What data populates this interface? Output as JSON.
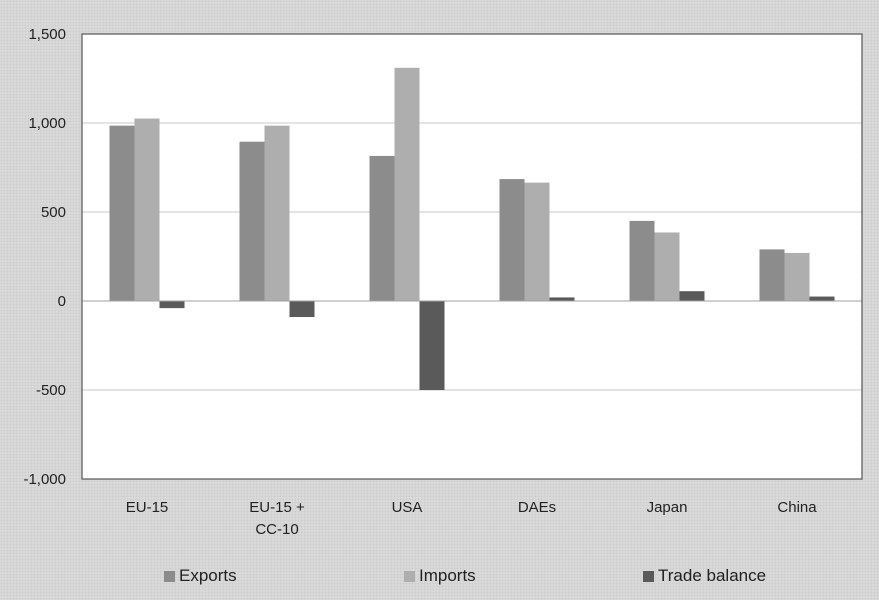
{
  "chart_data": {
    "type": "bar",
    "title": "",
    "xlabel": "",
    "ylabel": "",
    "categories": [
      [
        "EU-15"
      ],
      [
        "EU-15 +",
        "CC-10"
      ],
      [
        "USA"
      ],
      [
        "DAEs"
      ],
      [
        "Japan"
      ],
      [
        "China"
      ]
    ],
    "series": [
      {
        "name": "Exports",
        "color": "#8c8c8c",
        "values": [
          985,
          895,
          815,
          685,
          450,
          290
        ]
      },
      {
        "name": "Imports",
        "color": "#aeaeae",
        "values": [
          1025,
          985,
          1310,
          665,
          385,
          270
        ]
      },
      {
        "name": "Trade balance",
        "color": "#5a5a5a",
        "values": [
          -40,
          -90,
          -500,
          20,
          55,
          25
        ]
      }
    ],
    "ylim": [
      -1000,
      1500
    ],
    "yticks": [
      -1000,
      -500,
      0,
      500,
      1000,
      1500
    ],
    "ytick_labels": [
      "-1,000",
      "-500",
      "0",
      "500",
      "1,000",
      "1,500"
    ],
    "grid": true,
    "legend_position": "bottom"
  }
}
